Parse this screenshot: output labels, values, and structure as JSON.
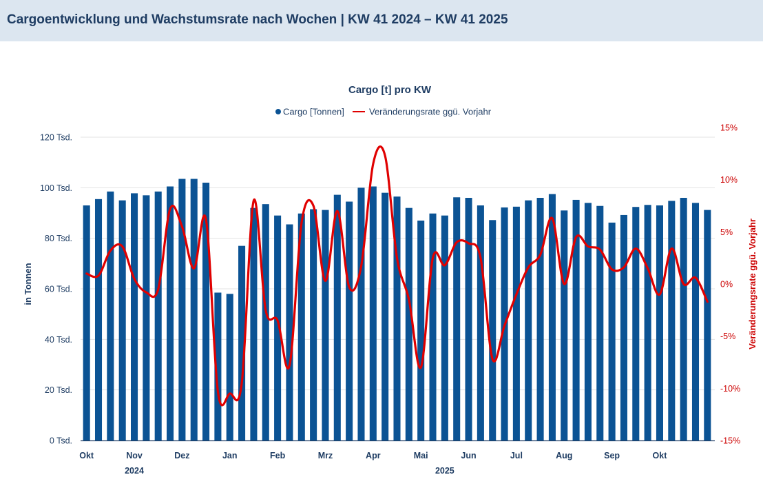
{
  "header": {
    "title": "Cargoentwicklung und Wachstumsrate nach Wochen | KW 41 2024 – KW 41 2025"
  },
  "chart_data": {
    "type": "bar+line",
    "title": "Cargo [t] pro KW",
    "legend": {
      "position": "top-center",
      "items": [
        {
          "name": "Cargo [Tonnen]",
          "marker": "dot",
          "color": "#0b5394"
        },
        {
          "name": "Veränderungsrate ggü. Vorjahr",
          "marker": "line",
          "color": "#e00000"
        }
      ]
    },
    "y_left": {
      "label": "in Tonnen",
      "range": [
        0,
        120000
      ],
      "ticks": [
        0,
        20000,
        40000,
        60000,
        80000,
        100000,
        120000
      ],
      "tick_labels": [
        "0 Tsd.",
        "20 Tsd.",
        "40 Tsd.",
        "60 Tsd.",
        "80 Tsd.",
        "100 Tsd.",
        "120 Tsd."
      ]
    },
    "y_right": {
      "label": "Veränderungsrate ggü. Vorjahr",
      "range": [
        -15,
        15
      ],
      "ticks": [
        -15,
        -10,
        -5,
        0,
        5,
        10,
        15
      ],
      "tick_labels": [
        "-15%",
        "-10%",
        "-5%",
        "0%",
        "5%",
        "10%",
        "15%"
      ]
    },
    "x": {
      "month_labels": [
        {
          "label": "Okt",
          "week_index": 0.5
        },
        {
          "label": "Nov",
          "week_index": 4.5
        },
        {
          "label": "Dez",
          "week_index": 8.5
        },
        {
          "label": "Jan",
          "week_index": 12.5
        },
        {
          "label": "Feb",
          "week_index": 16.5
        },
        {
          "label": "Mrz",
          "week_index": 20.5
        },
        {
          "label": "Apr",
          "week_index": 24.5
        },
        {
          "label": "Mai",
          "week_index": 28.5
        },
        {
          "label": "Jun",
          "week_index": 32.5
        },
        {
          "label": "Jul",
          "week_index": 36.5
        },
        {
          "label": "Aug",
          "week_index": 40.5
        },
        {
          "label": "Sep",
          "week_index": 44.5
        },
        {
          "label": "Okt",
          "week_index": 48.5
        }
      ],
      "year_labels": [
        {
          "label": "2024",
          "week_index": 4.5
        },
        {
          "label": "2025",
          "week_index": 30.5
        }
      ]
    },
    "series": [
      {
        "name": "Cargo [Tonnen]",
        "type": "bar",
        "color": "#0b5394",
        "values": [
          93000,
          95500,
          98500,
          95000,
          97800,
          97000,
          98500,
          100500,
          103500,
          103500,
          102000,
          58500,
          58000,
          77000,
          92000,
          93500,
          89000,
          85500,
          89800,
          91500,
          91200,
          97200,
          94500,
          100000,
          100500,
          98000,
          96500,
          92000,
          87000,
          89800,
          89000,
          96200,
          96000,
          93000,
          87200,
          92200,
          92500,
          95000,
          96000,
          97500,
          91000,
          95200,
          94000,
          92800,
          86200,
          89200,
          92400,
          93200,
          93000,
          94800,
          96000,
          94000,
          91200
        ]
      },
      {
        "name": "Veränderungsrate ggü. Vorjahr",
        "type": "line",
        "color": "#e00000",
        "values": [
          1.0,
          0.8,
          3.2,
          3.6,
          0.5,
          -0.8,
          -0.5,
          7.2,
          5.5,
          1.5,
          6.2,
          -10.3,
          -10.5,
          -9.5,
          8.0,
          -2.5,
          -3.5,
          -7.8,
          5.8,
          7.5,
          0.3,
          7.0,
          -0.3,
          1.7,
          11.5,
          12.3,
          2.5,
          -1.5,
          -8.0,
          2.5,
          1.8,
          4.0,
          3.9,
          2.5,
          -7.2,
          -4.0,
          -1.0,
          1.6,
          2.8,
          6.3,
          0.0,
          4.5,
          3.6,
          3.3,
          1.4,
          1.6,
          3.4,
          1.5,
          -1.0,
          3.4,
          0.0,
          0.6,
          -1.7
        ]
      }
    ]
  }
}
